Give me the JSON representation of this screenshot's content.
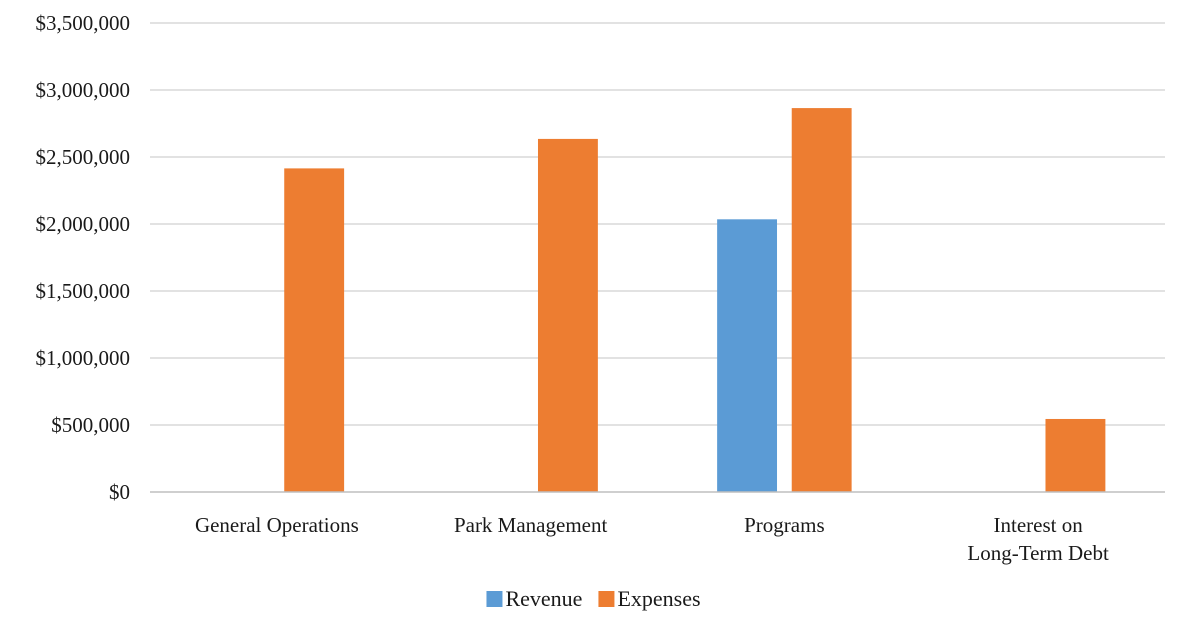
{
  "chart_data": {
    "type": "bar",
    "title": "",
    "xlabel": "",
    "ylabel": "",
    "categories": [
      [
        "General Operations"
      ],
      [
        "Park Management"
      ],
      [
        "Programs"
      ],
      [
        "Interest on",
        "Long-Term Debt"
      ]
    ],
    "series": [
      {
        "name": "Revenue",
        "color": "#5b9bd5",
        "values": [
          0,
          0,
          2035000,
          0
        ]
      },
      {
        "name": "Expenses",
        "color": "#ed7d31",
        "values": [
          2415000,
          2635000,
          2865000,
          545000
        ]
      }
    ],
    "ylim": [
      0,
      3500000
    ],
    "yticks": [
      0,
      500000,
      1000000,
      1500000,
      2000000,
      2500000,
      3000000,
      3500000
    ],
    "ytick_labels": [
      "$0",
      "$500,000",
      "$1,000,000",
      "$1,500,000",
      "$2,000,000",
      "$2,500,000",
      "$3,000,000",
      "$3,500,000"
    ],
    "grid": true,
    "legend_position": "bottom"
  }
}
